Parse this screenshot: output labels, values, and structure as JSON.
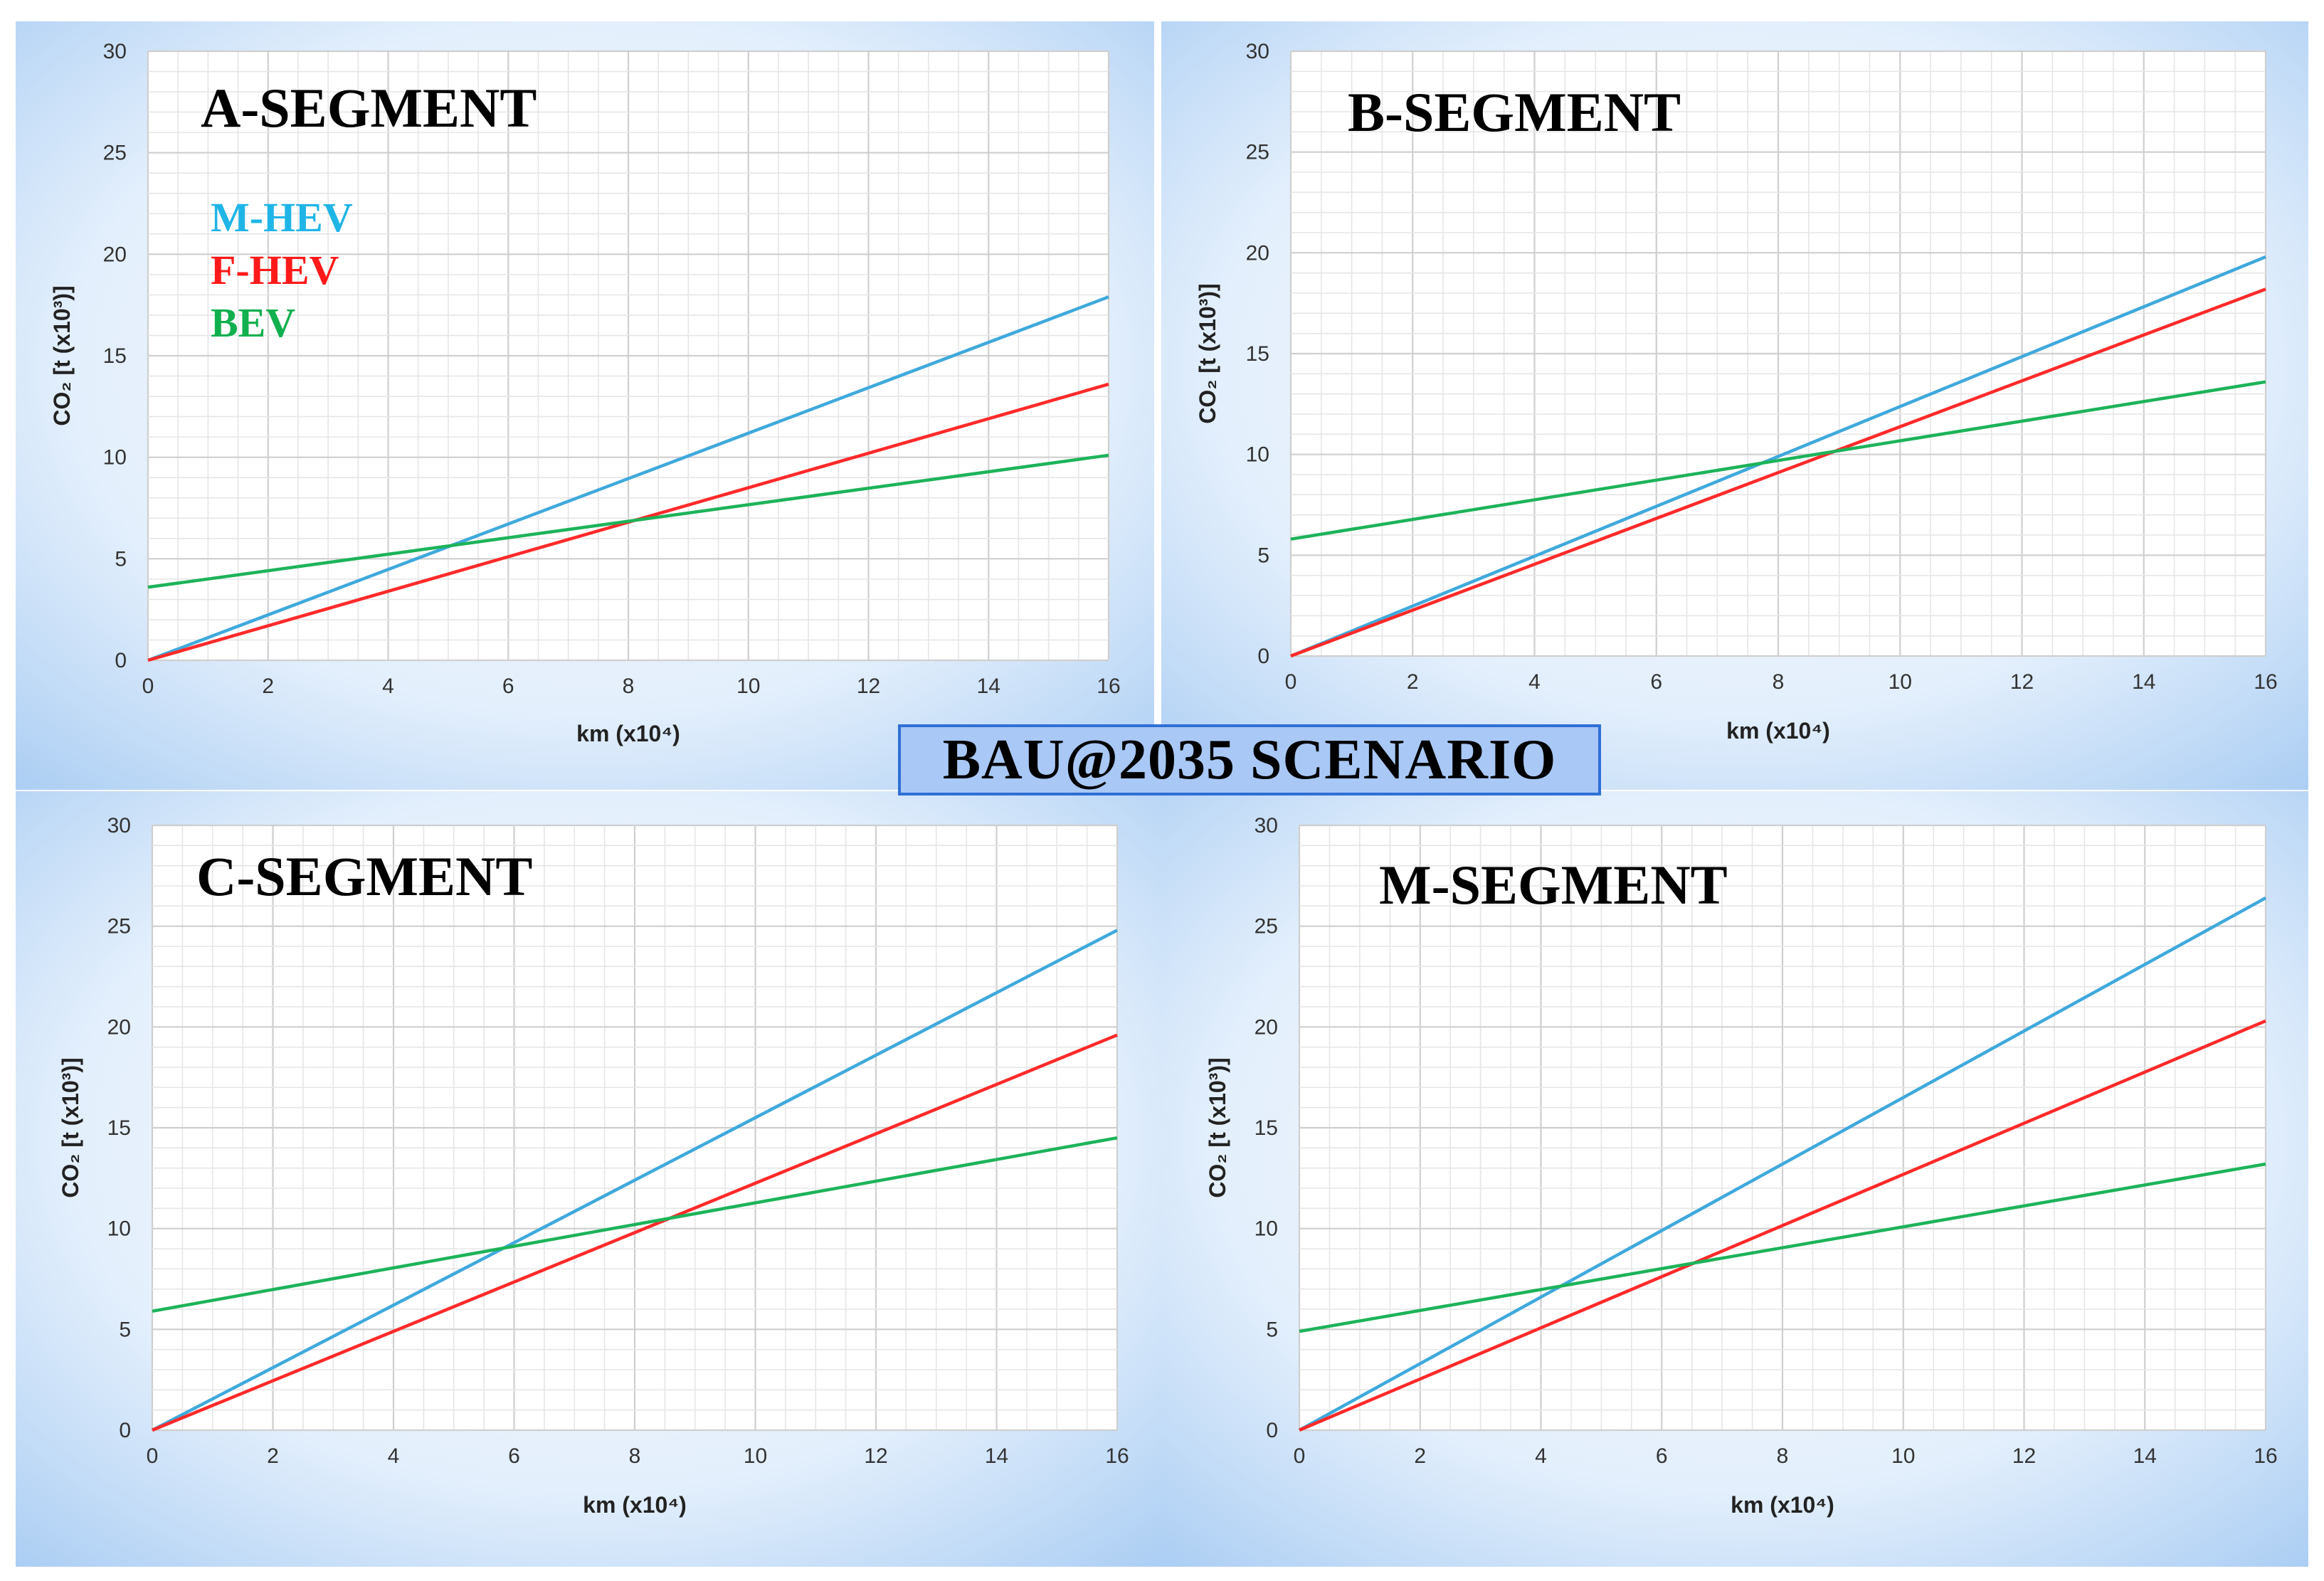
{
  "banner": "BAU@2035 SCENARIO",
  "colors": {
    "M-HEV": "#3fa9dc",
    "F-HEV": "#ff2a2a",
    "BEV": "#1db35a"
  },
  "legend": [
    {
      "name": "M-HEV",
      "color": "#1fb5e6"
    },
    {
      "name": "F-HEV",
      "color": "#ff1a1a"
    },
    {
      "name": "BEV",
      "color": "#11b04e"
    }
  ],
  "chart_data": [
    {
      "type": "line",
      "title": "A-SEGMENT",
      "xlabel": "km (x10⁴)",
      "ylabel": "CO₂ [t (x10³)]",
      "xlim": [
        0,
        16
      ],
      "ylim": [
        0,
        30
      ],
      "xticks": [
        0,
        2,
        4,
        6,
        8,
        10,
        12,
        14,
        16
      ],
      "yticks": [
        0,
        5,
        10,
        15,
        20,
        25,
        30
      ],
      "grid": true,
      "series": [
        {
          "name": "M-HEV",
          "x": [
            0,
            16
          ],
          "y": [
            0,
            17.9
          ]
        },
        {
          "name": "F-HEV",
          "x": [
            0,
            16
          ],
          "y": [
            0,
            13.6
          ]
        },
        {
          "name": "BEV",
          "x": [
            0,
            16
          ],
          "y": [
            3.6,
            10.1
          ]
        }
      ]
    },
    {
      "type": "line",
      "title": "B-SEGMENT",
      "xlabel": "km (x10⁴)",
      "ylabel": "CO₂ [t (x10³)]",
      "xlim": [
        0,
        16
      ],
      "ylim": [
        0,
        30
      ],
      "xticks": [
        0,
        2,
        4,
        6,
        8,
        10,
        12,
        14,
        16
      ],
      "yticks": [
        0,
        5,
        10,
        15,
        20,
        25,
        30
      ],
      "grid": true,
      "series": [
        {
          "name": "M-HEV",
          "x": [
            0,
            16
          ],
          "y": [
            0,
            19.8
          ]
        },
        {
          "name": "F-HEV",
          "x": [
            0,
            16
          ],
          "y": [
            0,
            18.2
          ]
        },
        {
          "name": "BEV",
          "x": [
            0,
            16
          ],
          "y": [
            5.8,
            13.6
          ]
        }
      ]
    },
    {
      "type": "line",
      "title": "C-SEGMENT",
      "xlabel": "km (x10⁴)",
      "ylabel": "CO₂ [t (x10³)]",
      "xlim": [
        0,
        16
      ],
      "ylim": [
        0,
        30
      ],
      "xticks": [
        0,
        2,
        4,
        6,
        8,
        10,
        12,
        14,
        16
      ],
      "yticks": [
        0,
        5,
        10,
        15,
        20,
        25,
        30
      ],
      "grid": true,
      "series": [
        {
          "name": "M-HEV",
          "x": [
            0,
            16
          ],
          "y": [
            0,
            24.8
          ]
        },
        {
          "name": "F-HEV",
          "x": [
            0,
            16
          ],
          "y": [
            0,
            19.6
          ]
        },
        {
          "name": "BEV",
          "x": [
            0,
            16
          ],
          "y": [
            5.9,
            14.5
          ]
        }
      ]
    },
    {
      "type": "line",
      "title": "M-SEGMENT",
      "xlabel": "km (x10⁴)",
      "ylabel": "CO₂ [t (x10³)]",
      "xlim": [
        0,
        16
      ],
      "ylim": [
        0,
        30
      ],
      "xticks": [
        0,
        2,
        4,
        6,
        8,
        10,
        12,
        14,
        16
      ],
      "yticks": [
        0,
        5,
        10,
        15,
        20,
        25,
        30
      ],
      "grid": true,
      "series": [
        {
          "name": "M-HEV",
          "x": [
            0,
            16
          ],
          "y": [
            0,
            26.4
          ]
        },
        {
          "name": "F-HEV",
          "x": [
            0,
            16
          ],
          "y": [
            0,
            20.3
          ]
        },
        {
          "name": "BEV",
          "x": [
            0,
            16
          ],
          "y": [
            4.9,
            13.2
          ]
        }
      ]
    }
  ]
}
